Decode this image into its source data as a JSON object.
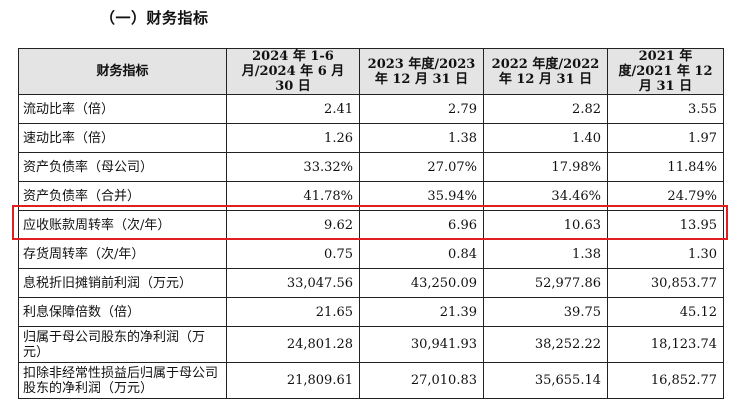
{
  "heading": "（一）财务指标",
  "table": {
    "headers": [
      "财务指标",
      "2024 年 1-6 月/2024 年 6 月 30 日",
      "2023 年度/2023 年 12 月 31 日",
      "2022 年度/2022 年 12 月 31 日",
      "2021 年度/2021 年 12 月 31 日"
    ],
    "rows": [
      {
        "label": "流动比率（倍）",
        "values": [
          "2.41",
          "2.79",
          "2.82",
          "3.55"
        ]
      },
      {
        "label": "速动比率（倍）",
        "values": [
          "1.26",
          "1.38",
          "1.40",
          "1.97"
        ]
      },
      {
        "label": "资产负债率（母公司）",
        "values": [
          "33.32%",
          "27.07%",
          "17.98%",
          "11.84%"
        ]
      },
      {
        "label": "资产负债率（合并）",
        "values": [
          "41.78%",
          "35.94%",
          "34.46%",
          "24.79%"
        ]
      },
      {
        "label": "应收账款周转率（次/年）",
        "values": [
          "9.62",
          "6.96",
          "10.63",
          "13.95"
        ],
        "highlighted": true
      },
      {
        "label": "存货周转率（次/年）",
        "values": [
          "0.75",
          "0.84",
          "1.38",
          "1.30"
        ]
      },
      {
        "label": "息税折旧摊销前利润（万元）",
        "values": [
          "33,047.56",
          "43,250.09",
          "52,977.86",
          "30,853.77"
        ]
      },
      {
        "label": "利息保障倍数（倍）",
        "values": [
          "21.65",
          "21.39",
          "39.75",
          "45.12"
        ]
      },
      {
        "label": "归属于母公司股东的净利润（万元）",
        "values": [
          "24,801.28",
          "30,941.93",
          "38,252.22",
          "18,123.74"
        ]
      },
      {
        "label": "扣除非经常性损益后归属于母公司股东的净利润（万元）",
        "values": [
          "21,809.61",
          "27,010.83",
          "35,655.14",
          "16,852.77"
        ]
      }
    ]
  },
  "highlight_color": "#e02020"
}
